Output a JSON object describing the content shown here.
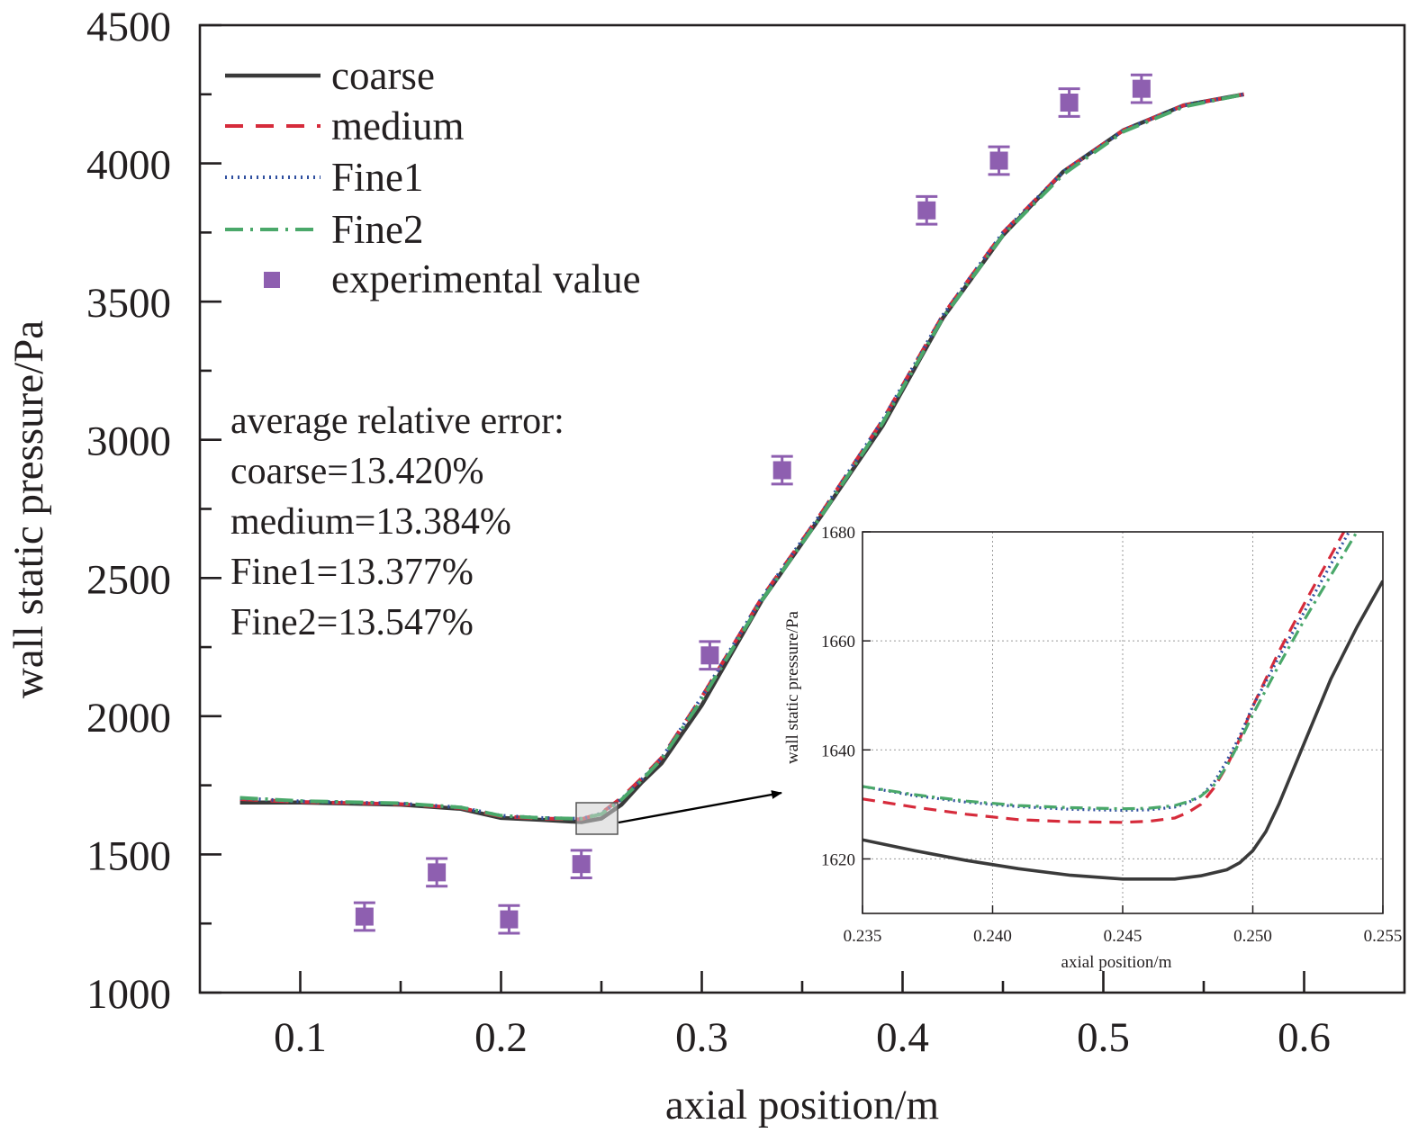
{
  "chart_data": [
    {
      "type": "line",
      "xlabel": "axial position/m",
      "ylabel": "wall static pressure/Pa",
      "xlim": [
        0.05,
        0.65
      ],
      "ylim": [
        1000,
        4500
      ],
      "xticks": [
        "0.1",
        "0.2",
        "0.3",
        "0.4",
        "0.5",
        "0.6"
      ],
      "yticks": [
        "1000",
        "1500",
        "2000",
        "2500",
        "3000",
        "3500",
        "4000",
        "4500"
      ],
      "grid": false,
      "legend_position": "top-left",
      "legend": [
        "coarse",
        "medium",
        "Fine1",
        "Fine2",
        "experimental value"
      ],
      "annotation_title": "average relative error:",
      "annotations": [
        "coarse=13.420%",
        "medium=13.384%",
        "Fine1=13.377%",
        "Fine2=13.547%"
      ],
      "series": [
        {
          "name": "coarse",
          "color": "#3a3a3a",
          "style": "solid",
          "x": [
            0.07,
            0.1,
            0.15,
            0.18,
            0.2,
            0.22,
            0.24,
            0.25,
            0.26,
            0.27,
            0.28,
            0.3,
            0.33,
            0.36,
            0.39,
            0.42,
            0.45,
            0.48,
            0.51,
            0.54,
            0.57
          ],
          "y": [
            1688,
            1688,
            1680,
            1665,
            1632,
            1625,
            1617,
            1630,
            1680,
            1760,
            1830,
            2040,
            2420,
            2730,
            3050,
            3440,
            3740,
            3970,
            4120,
            4210,
            4250
          ]
        },
        {
          "name": "medium",
          "color": "#d62b3b",
          "style": "dashed",
          "x": [
            0.07,
            0.1,
            0.15,
            0.18,
            0.2,
            0.22,
            0.24,
            0.25,
            0.26,
            0.27,
            0.28,
            0.3,
            0.33,
            0.36,
            0.39,
            0.42,
            0.45,
            0.48,
            0.51,
            0.54,
            0.57
          ],
          "y": [
            1700,
            1690,
            1682,
            1668,
            1638,
            1630,
            1627,
            1650,
            1705,
            1775,
            1850,
            2070,
            2430,
            2740,
            3070,
            3450,
            3750,
            3970,
            4120,
            4210,
            4250
          ]
        },
        {
          "name": "Fine1",
          "color": "#2f4f9f",
          "style": "dotted",
          "x": [
            0.07,
            0.1,
            0.15,
            0.18,
            0.2,
            0.22,
            0.24,
            0.25,
            0.26,
            0.27,
            0.28,
            0.3,
            0.33,
            0.36,
            0.39,
            0.42,
            0.45,
            0.48,
            0.51,
            0.54,
            0.57
          ],
          "y": [
            1703,
            1692,
            1684,
            1670,
            1640,
            1632,
            1629,
            1648,
            1700,
            1770,
            1848,
            2070,
            2430,
            2740,
            3070,
            3450,
            3750,
            3970,
            4120,
            4210,
            4250
          ]
        },
        {
          "name": "Fine2",
          "color": "#4aa86a",
          "style": "dashdot",
          "x": [
            0.07,
            0.1,
            0.15,
            0.18,
            0.2,
            0.22,
            0.24,
            0.25,
            0.26,
            0.27,
            0.28,
            0.3,
            0.33,
            0.36,
            0.39,
            0.42,
            0.45,
            0.48,
            0.51,
            0.54,
            0.57
          ],
          "y": [
            1705,
            1693,
            1685,
            1670,
            1640,
            1632,
            1629,
            1646,
            1698,
            1768,
            1845,
            2060,
            2420,
            2730,
            3060,
            3440,
            3740,
            3960,
            4115,
            4205,
            4250
          ]
        }
      ],
      "experimental": {
        "name": "experimental value",
        "color": "#8e5fb0",
        "x": [
          0.132,
          0.168,
          0.204,
          0.24,
          0.304,
          0.34,
          0.412,
          0.448,
          0.483,
          0.519
        ],
        "y": [
          1275,
          1435,
          1265,
          1465,
          2220,
          2890,
          3830,
          4010,
          4220,
          4270
        ],
        "err": [
          50,
          50,
          50,
          50,
          50,
          50,
          50,
          50,
          50,
          50
        ]
      }
    },
    {
      "type": "line",
      "xlabel": "axial position/m",
      "ylabel": "wall static pressure/Pa",
      "xlim": [
        0.235,
        0.255
      ],
      "ylim": [
        1610,
        1680
      ],
      "xticks": [
        "0.235",
        "0.240",
        "0.245",
        "0.250",
        "0.255"
      ],
      "yticks": [
        "1620",
        "1640",
        "1660",
        "1680"
      ],
      "grid": true,
      "series": [
        {
          "name": "coarse",
          "color": "#3a3a3a",
          "style": "solid",
          "x": [
            0.235,
            0.237,
            0.239,
            0.241,
            0.243,
            0.245,
            0.247,
            0.248,
            0.249,
            0.2495,
            0.25,
            0.2505,
            0.251,
            0.252,
            0.253,
            0.254,
            0.255
          ],
          "y": [
            1623.5,
            1621.5,
            1619.7,
            1618.2,
            1617.0,
            1616.3,
            1616.3,
            1616.9,
            1618.0,
            1619.3,
            1621.5,
            1625.0,
            1630.0,
            1641.5,
            1653.0,
            1662.5,
            1671.0
          ]
        },
        {
          "name": "medium",
          "color": "#d62b3b",
          "style": "dashed",
          "x": [
            0.235,
            0.237,
            0.239,
            0.241,
            0.243,
            0.245,
            0.246,
            0.247,
            0.2475,
            0.248,
            0.2485,
            0.249,
            0.2495,
            0.25,
            0.2505,
            0.251,
            0.252,
            0.2535
          ],
          "y": [
            1631.0,
            1629.5,
            1628.2,
            1627.2,
            1626.8,
            1626.7,
            1626.9,
            1627.5,
            1628.5,
            1630.0,
            1633.0,
            1637.0,
            1642.0,
            1648.0,
            1653.0,
            1658.0,
            1667.0,
            1680.0
          ]
        },
        {
          "name": "Fine1",
          "color": "#2f4f9f",
          "style": "dotted",
          "x": [
            0.235,
            0.237,
            0.239,
            0.241,
            0.243,
            0.245,
            0.246,
            0.247,
            0.2475,
            0.248,
            0.2485,
            0.249,
            0.2495,
            0.25,
            0.2505,
            0.251,
            0.252,
            0.2537
          ],
          "y": [
            1633.3,
            1631.6,
            1630.4,
            1629.6,
            1629.1,
            1628.9,
            1629.0,
            1629.5,
            1630.3,
            1631.5,
            1634.0,
            1638.0,
            1642.5,
            1648.0,
            1652.5,
            1657.0,
            1665.5,
            1680.0
          ]
        },
        {
          "name": "Fine2",
          "color": "#4aa86a",
          "style": "dashdot",
          "x": [
            0.235,
            0.237,
            0.239,
            0.241,
            0.243,
            0.245,
            0.246,
            0.247,
            0.2475,
            0.248,
            0.2485,
            0.249,
            0.2495,
            0.25,
            0.2505,
            0.251,
            0.252,
            0.254
          ],
          "y": [
            1633.3,
            1631.8,
            1630.6,
            1629.8,
            1629.4,
            1629.2,
            1629.3,
            1629.8,
            1630.5,
            1631.5,
            1633.5,
            1637.0,
            1641.5,
            1646.5,
            1651.0,
            1655.5,
            1664.0,
            1680.0
          ]
        }
      ]
    }
  ]
}
